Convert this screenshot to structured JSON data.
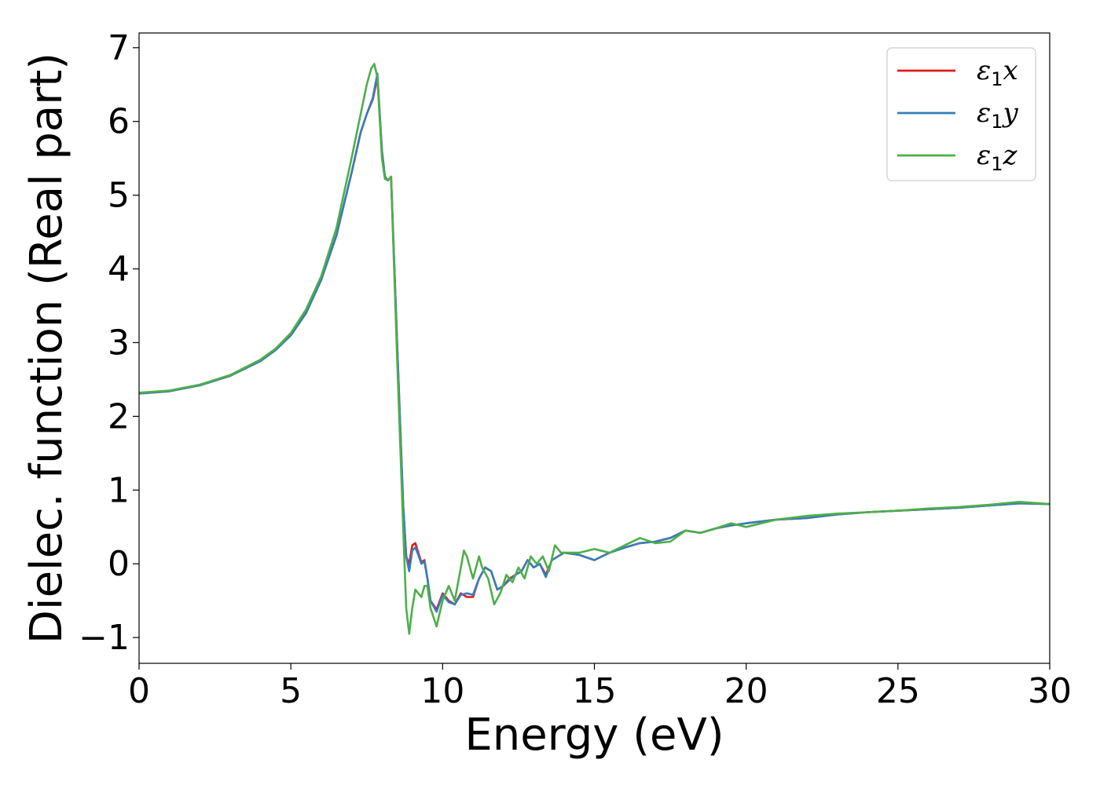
{
  "chart_data": {
    "type": "line",
    "xlabel": "Energy (eV)",
    "ylabel": "Dielec. function (Real part)",
    "xlim": [
      0,
      30
    ],
    "ylim": [
      -1.35,
      7.2
    ],
    "xticks": [
      0,
      5,
      10,
      15,
      20,
      25,
      30
    ],
    "xtick_labels": [
      "0",
      "5",
      "10",
      "15",
      "20",
      "25",
      "30"
    ],
    "yticks": [
      -1,
      0,
      1,
      2,
      3,
      4,
      5,
      6,
      7
    ],
    "ytick_labels": [
      "−1",
      "0",
      "1",
      "2",
      "3",
      "4",
      "5",
      "6",
      "7"
    ],
    "grid": false,
    "legend_position": "top-right",
    "series": [
      {
        "name": "ε₁x",
        "symbol": "ε",
        "subscript": "1",
        "suffix": "x",
        "color": "#e41a1c",
        "x": [
          0,
          1,
          2,
          3,
          4,
          4.5,
          5,
          5.5,
          6,
          6.5,
          7,
          7.3,
          7.5,
          7.7,
          7.85,
          8.0,
          8.1,
          8.2,
          8.3,
          8.5,
          8.7,
          8.8,
          8.9,
          9.0,
          9.1,
          9.2,
          9.3,
          9.4,
          9.5,
          9.6,
          9.8,
          10.0,
          10.2,
          10.4,
          10.6,
          10.8,
          11.0,
          11.2,
          11.4,
          11.6,
          11.8,
          12.0,
          12.2,
          12.4,
          12.6,
          12.8,
          13.0,
          13.2,
          13.4,
          13.6,
          13.8,
          14.0,
          14.5,
          15.0,
          15.5,
          16.0,
          16.5,
          17.0,
          17.5,
          18.0,
          18.5,
          19.0,
          19.5,
          20.0,
          21.0,
          22.0,
          23.0,
          24.0,
          25.0,
          26.0,
          27.0,
          28.0,
          29.0,
          30.0
        ],
        "y": [
          2.31,
          2.34,
          2.42,
          2.55,
          2.75,
          2.9,
          3.1,
          3.4,
          3.85,
          4.45,
          5.3,
          5.85,
          6.1,
          6.3,
          6.6,
          5.6,
          5.25,
          5.2,
          5.25,
          3.0,
          0.8,
          0.1,
          0.0,
          0.25,
          0.28,
          0.15,
          0.02,
          0.05,
          -0.2,
          -0.5,
          -0.62,
          -0.4,
          -0.5,
          -0.55,
          -0.4,
          -0.45,
          -0.45,
          -0.2,
          -0.05,
          -0.1,
          -0.35,
          -0.3,
          -0.2,
          -0.15,
          -0.1,
          0.05,
          -0.05,
          0.0,
          -0.15,
          0.05,
          0.1,
          0.15,
          0.12,
          0.05,
          0.15,
          0.22,
          0.28,
          0.3,
          0.35,
          0.45,
          0.42,
          0.48,
          0.52,
          0.55,
          0.6,
          0.62,
          0.67,
          0.7,
          0.72,
          0.74,
          0.76,
          0.79,
          0.82,
          0.81
        ]
      },
      {
        "name": "ε₁y",
        "symbol": "ε",
        "subscript": "1",
        "suffix": "y",
        "color": "#377eb8",
        "x": [
          0,
          1,
          2,
          3,
          4,
          4.5,
          5,
          5.5,
          6,
          6.5,
          7,
          7.3,
          7.5,
          7.7,
          7.85,
          8.0,
          8.1,
          8.2,
          8.3,
          8.5,
          8.7,
          8.8,
          8.9,
          9.0,
          9.1,
          9.2,
          9.3,
          9.4,
          9.5,
          9.6,
          9.8,
          10.0,
          10.2,
          10.4,
          10.6,
          10.8,
          11.0,
          11.2,
          11.4,
          11.6,
          11.8,
          12.0,
          12.2,
          12.4,
          12.6,
          12.8,
          13.0,
          13.2,
          13.4,
          13.6,
          13.8,
          14.0,
          14.5,
          15.0,
          15.5,
          16.0,
          16.5,
          17.0,
          17.5,
          18.0,
          18.5,
          19.0,
          19.5,
          20.0,
          21.0,
          22.0,
          23.0,
          24.0,
          25.0,
          26.0,
          27.0,
          28.0,
          29.0,
          30.0
        ],
        "y": [
          2.31,
          2.34,
          2.42,
          2.55,
          2.75,
          2.9,
          3.1,
          3.4,
          3.85,
          4.45,
          5.3,
          5.85,
          6.1,
          6.32,
          6.65,
          5.6,
          5.25,
          5.2,
          5.25,
          3.0,
          0.8,
          0.1,
          -0.1,
          0.18,
          0.22,
          0.12,
          0.0,
          0.03,
          -0.2,
          -0.5,
          -0.65,
          -0.42,
          -0.52,
          -0.55,
          -0.42,
          -0.4,
          -0.42,
          -0.2,
          -0.05,
          -0.1,
          -0.35,
          -0.3,
          -0.22,
          -0.15,
          -0.1,
          0.05,
          -0.05,
          0.0,
          -0.18,
          0.05,
          0.1,
          0.15,
          0.12,
          0.05,
          0.15,
          0.22,
          0.28,
          0.3,
          0.35,
          0.45,
          0.42,
          0.48,
          0.52,
          0.55,
          0.6,
          0.62,
          0.67,
          0.7,
          0.72,
          0.74,
          0.76,
          0.79,
          0.82,
          0.81
        ]
      },
      {
        "name": "ε₁z",
        "symbol": "ε",
        "subscript": "1",
        "suffix": "z",
        "color": "#4daf4a",
        "x": [
          0,
          1,
          2,
          3,
          4,
          4.5,
          5,
          5.5,
          6,
          6.5,
          7,
          7.3,
          7.5,
          7.65,
          7.75,
          7.85,
          8.0,
          8.1,
          8.2,
          8.3,
          8.5,
          8.7,
          8.8,
          8.9,
          9.0,
          9.1,
          9.2,
          9.3,
          9.4,
          9.5,
          9.6,
          9.8,
          10.0,
          10.2,
          10.4,
          10.6,
          10.7,
          10.8,
          11.0,
          11.2,
          11.3,
          11.5,
          11.7,
          11.9,
          12.1,
          12.3,
          12.5,
          12.7,
          12.9,
          13.1,
          13.3,
          13.5,
          13.7,
          13.9,
          14.1,
          14.5,
          15.0,
          15.5,
          16.0,
          16.5,
          17.0,
          17.5,
          18.0,
          18.5,
          19.0,
          19.5,
          20.0,
          21.0,
          22.0,
          23.0,
          24.0,
          25.0,
          26.0,
          27.0,
          28.0,
          29.0,
          30.0
        ],
        "y": [
          2.32,
          2.35,
          2.43,
          2.56,
          2.77,
          2.92,
          3.13,
          3.45,
          3.9,
          4.55,
          5.5,
          6.1,
          6.5,
          6.72,
          6.78,
          6.6,
          5.5,
          5.22,
          5.2,
          5.25,
          2.8,
          0.5,
          -0.6,
          -0.95,
          -0.6,
          -0.35,
          -0.4,
          -0.45,
          -0.3,
          -0.3,
          -0.6,
          -0.85,
          -0.5,
          -0.3,
          -0.5,
          -0.05,
          0.18,
          0.1,
          -0.2,
          0.1,
          -0.05,
          -0.2,
          -0.55,
          -0.4,
          -0.15,
          -0.25,
          -0.05,
          -0.2,
          0.1,
          0.0,
          0.1,
          -0.1,
          0.25,
          0.15,
          0.15,
          0.15,
          0.2,
          0.15,
          0.25,
          0.35,
          0.28,
          0.3,
          0.45,
          0.42,
          0.48,
          0.55,
          0.5,
          0.6,
          0.65,
          0.68,
          0.7,
          0.72,
          0.75,
          0.77,
          0.8,
          0.84,
          0.81
        ]
      }
    ]
  }
}
